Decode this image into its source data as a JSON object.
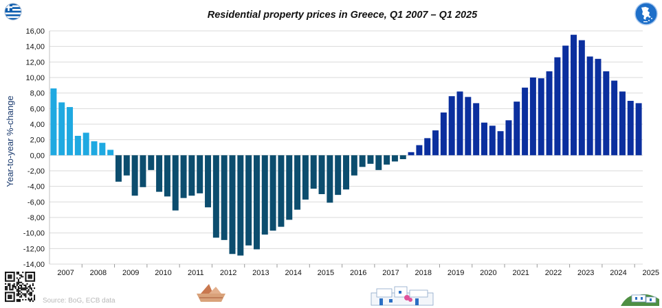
{
  "header": {
    "title": "Residential property prices in Greece, Q1 2007 – Q1 2025"
  },
  "footer": {
    "source": "Source: BoG, ECB data"
  },
  "icons": {
    "flag": "greek-flag-icon",
    "map_logo": "greece-map-icon",
    "qr": "qr-code-icon",
    "boat": "paper-boat-icon",
    "village": "cycladic-village-icon",
    "island": "island-house-icon"
  },
  "colors": {
    "phase1": "#1fa9e1",
    "phase2": "#0c4d6e",
    "phase3": "#0b2f9e",
    "grid": "#d9d9d9",
    "ylabel": "#1a3a6e"
  },
  "chart_data": {
    "type": "bar",
    "title": "Residential property prices in Greece, Q1 2007 – Q1 2025",
    "xlabel": "",
    "ylabel": "Year-to-year %-change",
    "ylim": [
      -14,
      16
    ],
    "yticks": [
      "16,00",
      "14,00",
      "12,00",
      "10,00",
      "8,00",
      "6,00",
      "4,00",
      "2,00",
      "0,00",
      "-2,00",
      "-4,00",
      "-6,00",
      "-8,00",
      "-10,00",
      "-12,00",
      "-14,00"
    ],
    "x_labels": [
      "2007",
      "2008",
      "2009",
      "2010",
      "2011",
      "2012",
      "2013",
      "2014",
      "2015",
      "2016",
      "2017",
      "2018",
      "2019",
      "2020",
      "2021",
      "2022",
      "2023",
      "2024",
      "2025"
    ],
    "grid": true,
    "legend": "none",
    "values": [
      8.6,
      6.8,
      6.2,
      2.5,
      2.9,
      1.8,
      1.6,
      0.7,
      -3.4,
      -2.6,
      -5.2,
      -4.1,
      -1.9,
      -4.7,
      -5.3,
      -7.1,
      -5.5,
      -5.2,
      -4.9,
      -6.7,
      -10.6,
      -10.9,
      -12.7,
      -12.9,
      -11.6,
      -12.1,
      -10.2,
      -9.7,
      -9.2,
      -8.3,
      -7.0,
      -5.7,
      -4.3,
      -5.0,
      -6.1,
      -5.1,
      -4.4,
      -2.6,
      -1.5,
      -1.1,
      -1.9,
      -1.2,
      -0.8,
      -0.5,
      0.4,
      1.3,
      2.2,
      3.2,
      5.5,
      7.6,
      8.2,
      7.5,
      6.7,
      4.2,
      3.8,
      3.1,
      4.5,
      6.9,
      8.7,
      10.0,
      9.9,
      10.8,
      12.6,
      14.1,
      15.5,
      14.8,
      12.7,
      12.4,
      10.8,
      9.6,
      8.2,
      7.0,
      6.7
    ]
  }
}
